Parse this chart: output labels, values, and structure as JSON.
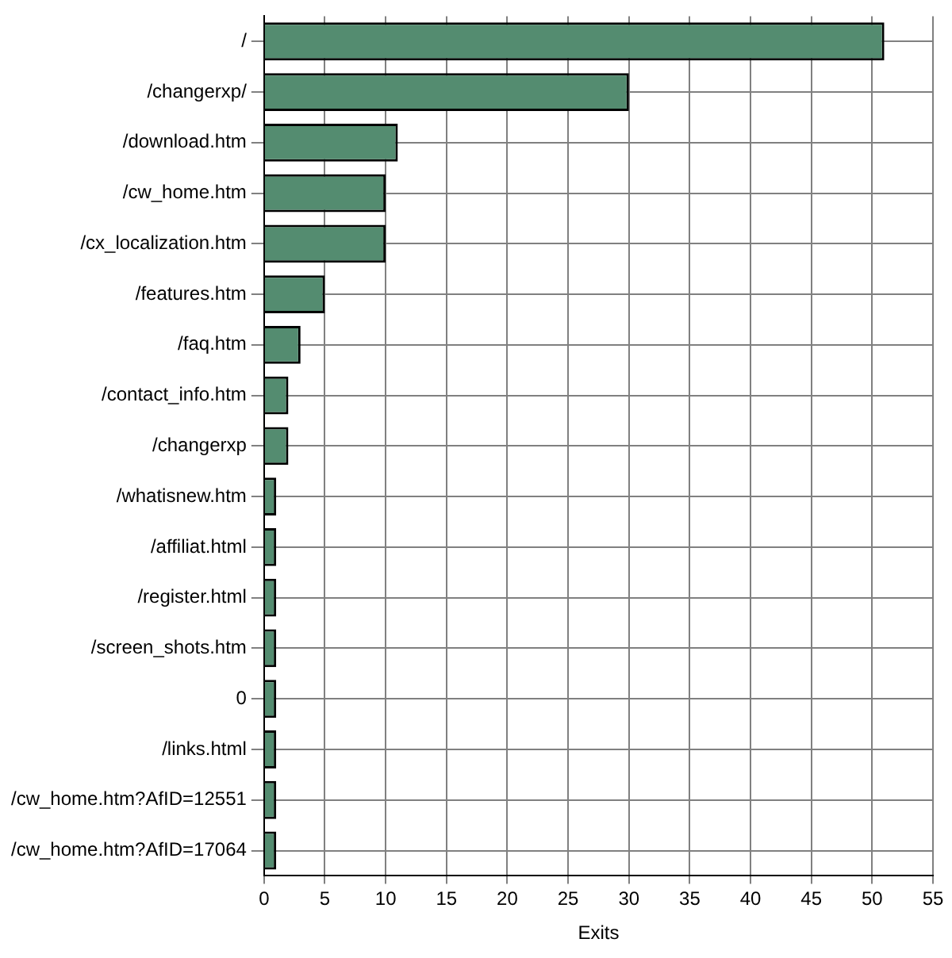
{
  "chart_data": {
    "type": "bar",
    "orientation": "horizontal",
    "xlabel": "Exits",
    "categories": [
      "/",
      "/changerxp/",
      "/download.htm",
      "/cw_home.htm",
      "/cx_localization.htm",
      "/features.htm",
      "/faq.htm",
      "/contact_info.htm",
      "/changerxp",
      "/whatisnew.htm",
      "/affiliat.html",
      "/register.html",
      "/screen_shots.htm",
      "0",
      "/links.html",
      "/cw_home.htm?AfID=12551",
      "/cw_home.htm?AfID=17064"
    ],
    "values": [
      51,
      30,
      11,
      10,
      10,
      5,
      3,
      2,
      2,
      1,
      1,
      1,
      1,
      1,
      1,
      1,
      1
    ],
    "color": "#548c70",
    "xlim": [
      0,
      55
    ],
    "xticks": [
      0,
      5,
      10,
      15,
      20,
      25,
      30,
      35,
      40,
      45,
      50,
      55
    ],
    "grid": true,
    "legend": false
  }
}
